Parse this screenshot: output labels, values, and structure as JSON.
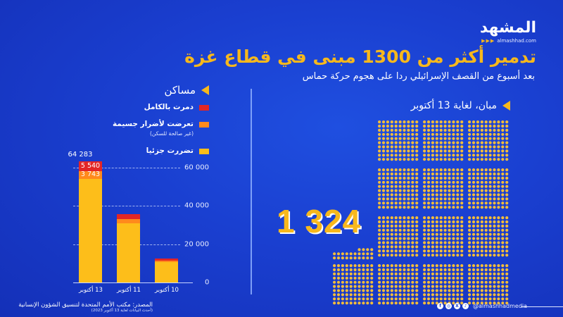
{
  "brand": {
    "logo_ar": "المشهد",
    "website": "almashhad.com",
    "social_handle": "@almashhadmedia",
    "social_icons": [
      "facebook-icon",
      "instagram-icon",
      "x-icon",
      "tiktok-icon"
    ]
  },
  "header": {
    "title": "تدمير أكثر من 1300 مبنى في قطاع غزة",
    "subtitle": "بعد أسبوع من القصف الإسرائيلي ردا على هجوم حركة حماس"
  },
  "colors": {
    "background": "#1a3fd0",
    "accent_yellow": "#f7b81c",
    "destroyed_red": "#e32626",
    "severe_orange": "#ff8a1c",
    "partial_yellow": "#fdbe1a"
  },
  "housing": {
    "section_title": "مساكن",
    "legend": [
      {
        "label": "دمرت بالكامل",
        "note": "",
        "color": "#e32626"
      },
      {
        "label": "تعرضت لأضرار جسيمة",
        "note": "(غير صالحة للسكن)",
        "color": "#ff8a1c"
      },
      {
        "label": "تضررت جزئيا",
        "note": "",
        "color": "#fdbe1a"
      }
    ],
    "y_ticks": [
      "0",
      "20 000",
      "40 000",
      "60 000"
    ],
    "x_labels": [
      "13 أكتوبر",
      "11 أكتوبر",
      "10 أكتوبر"
    ],
    "total_label_13oct": "64 283",
    "label_destroyed_13oct": "5 540",
    "label_severe_13oct": "3 743"
  },
  "buildings": {
    "section_title": "مبان، لغاية 13 أكتوبر",
    "count_label": "1 324",
    "count": 1324
  },
  "footer": {
    "source": "المصدر: مكتب الأمم المتحدة لتنسيق الشؤون الإنسانية",
    "source_date": "(أحدث البيانات لغاية 13 أكتوبر 2023)"
  },
  "chart_data": [
    {
      "type": "bar",
      "stacked": true,
      "title": "مساكن",
      "categories": [
        "13 أكتوبر",
        "11 أكتوبر",
        "10 أكتوبر"
      ],
      "series": [
        {
          "name": "دمرت بالكامل",
          "color": "#e32626",
          "values": [
            5540,
            2500,
            1000
          ]
        },
        {
          "name": "تعرضت لأضرار جسيمة (غير صالحة للسكن)",
          "color": "#ff8a1c",
          "values": [
            3743,
            2200,
            600
          ]
        },
        {
          "name": "تضررت جزئيا",
          "color": "#fdbe1a",
          "values": [
            55000,
            31000,
            11000
          ]
        }
      ],
      "totals": [
        64283,
        35700,
        12600
      ],
      "xlabel": "",
      "ylabel": "",
      "ylim": [
        0,
        65000
      ],
      "y_ticks": [
        0,
        20000,
        40000,
        60000
      ],
      "grid": true,
      "legend_position": "top"
    },
    {
      "type": "pictogram",
      "title": "مبان، لغاية 13 أكتوبر",
      "value": 1324,
      "unit_per_dot": 1,
      "block_size": 100
    }
  ]
}
